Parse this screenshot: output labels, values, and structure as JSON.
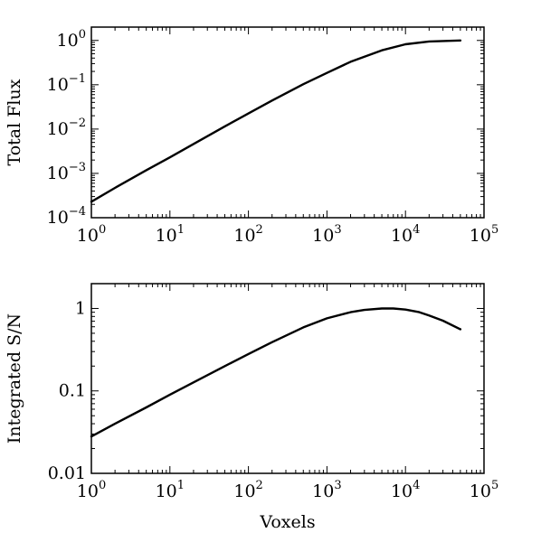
{
  "chart_data": [
    {
      "type": "line",
      "xscale": "log",
      "yscale": "log",
      "xlim": [
        1,
        100000
      ],
      "ylim": [
        0.0001,
        2
      ],
      "xlabel": "",
      "ylabel": "Total Flux",
      "xticks": [
        {
          "value": 1,
          "base": "10",
          "exp": "0"
        },
        {
          "value": 10,
          "base": "10",
          "exp": "1"
        },
        {
          "value": 100,
          "base": "10",
          "exp": "2"
        },
        {
          "value": 1000,
          "base": "10",
          "exp": "3"
        },
        {
          "value": 10000,
          "base": "10",
          "exp": "4"
        },
        {
          "value": 100000,
          "base": "10",
          "exp": "5"
        }
      ],
      "yticks": [
        {
          "value": 0.0001,
          "base": "10",
          "exp": "−4"
        },
        {
          "value": 0.001,
          "base": "10",
          "exp": "−3"
        },
        {
          "value": 0.01,
          "base": "10",
          "exp": "−2"
        },
        {
          "value": 0.1,
          "base": "10",
          "exp": "−1"
        },
        {
          "value": 1,
          "base": "10",
          "exp": "0"
        }
      ],
      "grid": false,
      "series": [
        {
          "x": [
            1,
            2,
            5,
            10,
            20,
            50,
            100,
            200,
            500,
            1000,
            2000,
            5000,
            10000,
            20000,
            50000
          ],
          "y": [
            0.00023,
            0.00047,
            0.00118,
            0.0023,
            0.0046,
            0.0115,
            0.0225,
            0.044,
            0.103,
            0.185,
            0.33,
            0.6,
            0.82,
            0.95,
            1.0
          ]
        }
      ]
    },
    {
      "type": "line",
      "xscale": "log",
      "yscale": "log",
      "xlim": [
        1,
        100000
      ],
      "ylim": [
        0.01,
        2
      ],
      "xlabel": "Voxels",
      "ylabel": "Integrated S/N",
      "xticks": [
        {
          "value": 1,
          "base": "10",
          "exp": "0"
        },
        {
          "value": 10,
          "base": "10",
          "exp": "1"
        },
        {
          "value": 100,
          "base": "10",
          "exp": "2"
        },
        {
          "value": 1000,
          "base": "10",
          "exp": "3"
        },
        {
          "value": 10000,
          "base": "10",
          "exp": "4"
        },
        {
          "value": 100000,
          "base": "10",
          "exp": "5"
        }
      ],
      "yticks": [
        {
          "value": 0.01,
          "label": "0.01"
        },
        {
          "value": 0.1,
          "label": "0.1"
        },
        {
          "value": 1,
          "label": "1"
        }
      ],
      "grid": false,
      "series": [
        {
          "x": [
            1,
            2,
            5,
            10,
            20,
            50,
            100,
            200,
            500,
            1000,
            2000,
            3000,
            5000,
            7000,
            10000,
            15000,
            20000,
            30000,
            50000
          ],
          "y": [
            0.028,
            0.04,
            0.063,
            0.09,
            0.127,
            0.2,
            0.28,
            0.39,
            0.59,
            0.76,
            0.9,
            0.96,
            1.0,
            1.0,
            0.97,
            0.9,
            0.82,
            0.71,
            0.56
          ]
        }
      ]
    }
  ]
}
